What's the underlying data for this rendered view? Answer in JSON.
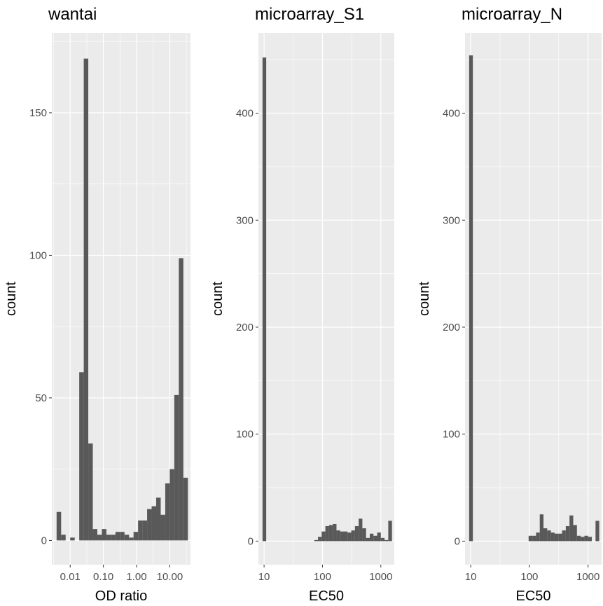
{
  "colors": {
    "panel_background": "#ebebeb",
    "grid_major": "#ffffff",
    "bar_fill": "#595959",
    "tick_text": "#4d4d4d"
  },
  "chart_data": [
    {
      "type": "bar",
      "title": "wantai",
      "xlabel": "OD ratio",
      "ylabel": "count",
      "x_scale": "log10",
      "xlim": [
        0.0028,
        42
      ],
      "ylim": [
        -8.5,
        178
      ],
      "x_ticks": [
        0.01,
        0.1,
        1,
        10
      ],
      "x_tick_labels": [
        "0.01",
        "0.10",
        "1.00",
        "10.00"
      ],
      "y_ticks": [
        0,
        50,
        100,
        150
      ],
      "y_tick_labels": [
        "0",
        "50",
        "100",
        "150"
      ],
      "grid": true,
      "bin_start": 0.0039,
      "bin_end": 35,
      "values": [
        10,
        2,
        0,
        1,
        0,
        59,
        169,
        34,
        4,
        2,
        4,
        2,
        2,
        3,
        3,
        2,
        1,
        3,
        7,
        7,
        11,
        12,
        15,
        9,
        20,
        25,
        51,
        99,
        22
      ]
    },
    {
      "type": "bar",
      "title": "microarray_S1",
      "xlabel": "EC50",
      "ylabel": "count",
      "x_scale": "log10",
      "xlim": [
        8,
        1700
      ],
      "ylim": [
        -22,
        475
      ],
      "x_ticks": [
        10,
        100,
        1000
      ],
      "x_tick_labels": [
        "10",
        "100",
        "1000"
      ],
      "y_ticks": [
        0,
        100,
        200,
        300,
        400
      ],
      "y_tick_labels": [
        "0",
        "100",
        "200",
        "300",
        "400"
      ],
      "grid": true,
      "bin_start": 9.4,
      "bin_end": 1550,
      "values": [
        452,
        0,
        0,
        0,
        0,
        0,
        0,
        0,
        0,
        0,
        0,
        0,
        0,
        0,
        1,
        4,
        9,
        14,
        15,
        16,
        10,
        9,
        9,
        8,
        10,
        14,
        21,
        12,
        3,
        7,
        5,
        8,
        3,
        1,
        19
      ]
    },
    {
      "type": "bar",
      "title": "microarray_N",
      "xlabel": "EC50",
      "ylabel": "count",
      "x_scale": "log10",
      "xlim": [
        8,
        1700
      ],
      "ylim": [
        -22,
        475
      ],
      "x_ticks": [
        10,
        100,
        1000
      ],
      "x_tick_labels": [
        "10",
        "100",
        "1000"
      ],
      "y_ticks": [
        0,
        100,
        200,
        300,
        400
      ],
      "y_tick_labels": [
        "0",
        "100",
        "200",
        "300",
        "400"
      ],
      "grid": true,
      "bin_start": 9.4,
      "bin_end": 1550,
      "values": [
        454,
        0,
        0,
        0,
        0,
        0,
        0,
        0,
        0,
        0,
        0,
        0,
        0,
        0,
        0,
        0,
        5,
        5,
        8,
        25,
        12,
        10,
        8,
        7,
        7,
        10,
        14,
        24,
        15,
        5,
        4,
        5,
        4,
        0,
        19
      ]
    }
  ]
}
